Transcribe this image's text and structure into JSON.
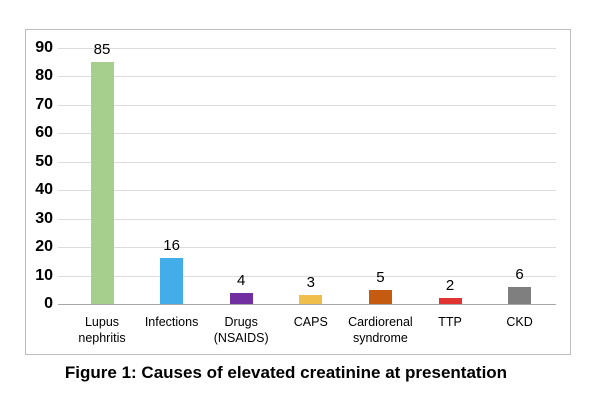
{
  "chart_data": {
    "type": "bar",
    "title": "",
    "xlabel": "",
    "ylabel": "",
    "caption": "Figure 1: Causes of elevated creatinine at presentation",
    "categories": [
      "Lupus\nnephritis",
      "Infections",
      "Drugs\n(NSAIDS)",
      "CAPS",
      "Cardiorenal\nsyndrome",
      "TTP",
      "CKD"
    ],
    "values": [
      85,
      16,
      4,
      3,
      5,
      2,
      6
    ],
    "value_labels": [
      "85",
      "16",
      "4",
      "3",
      "5",
      "2",
      "6"
    ],
    "bar_colors": [
      "#a6ce8d",
      "#42ade8",
      "#7030a0",
      "#f0be4a",
      "#c55a11",
      "#e13432",
      "#7f7f7f"
    ],
    "y_ticks": [
      0,
      10,
      20,
      30,
      40,
      50,
      60,
      70,
      80,
      90
    ],
    "ylim": [
      0,
      90
    ],
    "grid": true,
    "legend_position": "none",
    "colors": {
      "gridline": "#dcdcdc",
      "axis_line": "#a6a6a6",
      "frame_border": "#bebebe",
      "text": "#000000"
    }
  }
}
